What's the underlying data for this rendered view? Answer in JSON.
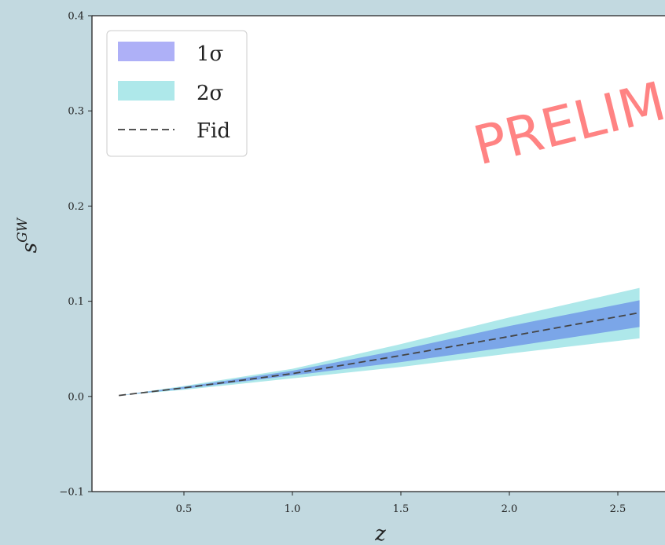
{
  "chart_data": {
    "type": "area",
    "xlabel": "z",
    "ylabel": "s",
    "ylabel_sup": "GW",
    "xlim": [
      0.1,
      2.8
    ],
    "ylim": [
      -0.1,
      0.4
    ],
    "xticks": [
      "0.5",
      "1.0",
      "1.5",
      "2.0",
      "2.5"
    ],
    "yticks": [
      "−0.1",
      "0.0",
      "0.1",
      "0.2",
      "0.3",
      "0.4"
    ],
    "legend_position": "top-left",
    "legend": [
      {
        "label": "1σ",
        "color": "#aeb0f7",
        "kind": "band"
      },
      {
        "label": "2σ",
        "color": "#aee8ea",
        "kind": "band"
      },
      {
        "label": "Fid",
        "color": "#555555",
        "kind": "dashed-line"
      }
    ],
    "x": [
      0.2,
      0.5,
      1.0,
      1.5,
      2.0,
      2.6
    ],
    "series": [
      {
        "name": "Fid",
        "values": [
          0.001,
          0.009,
          0.024,
          0.043,
          0.063,
          0.088
        ]
      },
      {
        "name": "1σ",
        "lower": [
          0.001,
          0.008,
          0.022,
          0.036,
          0.052,
          0.073
        ],
        "upper": [
          0.001,
          0.01,
          0.027,
          0.049,
          0.074,
          0.101
        ]
      },
      {
        "name": "2σ",
        "lower": [
          0.001,
          0.007,
          0.019,
          0.031,
          0.045,
          0.061
        ],
        "upper": [
          0.001,
          0.011,
          0.029,
          0.055,
          0.083,
          0.114
        ]
      }
    ],
    "band_colors": {
      "one_sigma_fill": "#7ba6e8",
      "two_sigma_fill": "#aee8ea",
      "fid_line": "#444444"
    },
    "watermark": "PRELIM"
  }
}
